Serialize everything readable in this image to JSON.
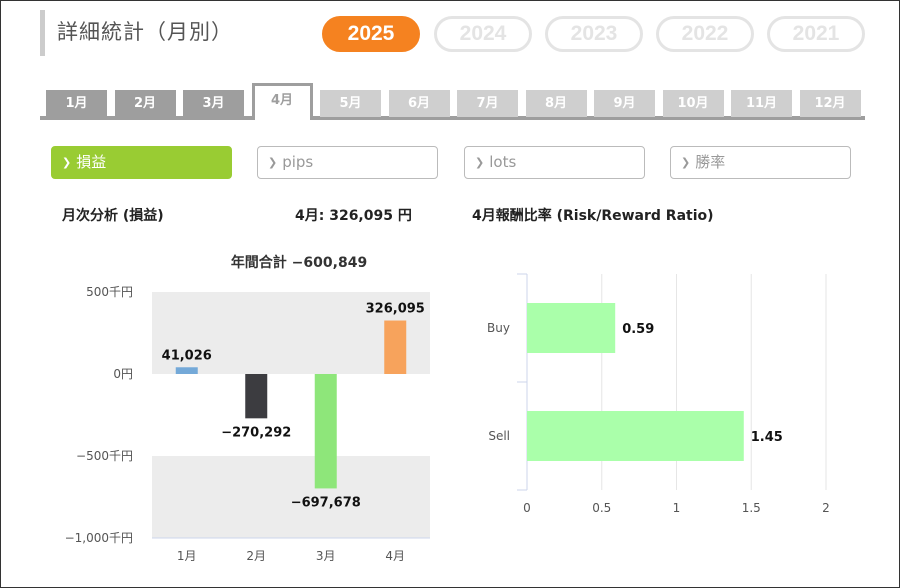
{
  "header": {
    "title": "詳細統計（月別）"
  },
  "years": [
    {
      "label": "2025",
      "active": true
    },
    {
      "label": "2024",
      "active": false
    },
    {
      "label": "2023",
      "active": false
    },
    {
      "label": "2022",
      "active": false
    },
    {
      "label": "2021",
      "active": false
    }
  ],
  "months": [
    "1月",
    "2月",
    "3月",
    "4月",
    "5月",
    "6月",
    "7月",
    "8月",
    "9月",
    "10月",
    "11月",
    "12月"
  ],
  "active_month_index": 3,
  "metrics": [
    {
      "label": "損益",
      "active": true
    },
    {
      "label": "pips",
      "active": false
    },
    {
      "label": "lots",
      "active": false
    },
    {
      "label": "勝率",
      "active": false
    }
  ],
  "summary": {
    "left_title": "月次分析 (損益)",
    "month_value": "4月:  326,095 円",
    "right_title": "4月報酬比率 (Risk/Reward Ratio)"
  },
  "chart_data": [
    {
      "type": "bar",
      "title": "年間合計 −600,849",
      "categories": [
        "1月",
        "2月",
        "3月",
        "4月"
      ],
      "values": [
        41026,
        -270292,
        -697678,
        326095
      ],
      "value_labels": [
        "41,026",
        "−270,292",
        "−697,678",
        "326,095"
      ],
      "bar_colors": [
        "#74a9d8",
        "#3c3c40",
        "#8ee67a",
        "#f7a35c"
      ],
      "yticks": [
        500000,
        0,
        -500000,
        -1000000
      ],
      "ytick_labels": [
        "500千円",
        "0円",
        "−500千円",
        "−1,000千円"
      ],
      "ylim": [
        -1000000,
        500000
      ],
      "plot_bands": [
        [
          0,
          500000
        ],
        [
          -1000000,
          -500000
        ]
      ]
    },
    {
      "type": "bar",
      "orientation": "horizontal",
      "categories": [
        "Buy",
        "Sell"
      ],
      "values": [
        0.59,
        1.45
      ],
      "value_labels": [
        "0.59",
        "1.45"
      ],
      "bar_color": "#aaffaa",
      "xticks": [
        0,
        0.5,
        1,
        1.5,
        2
      ],
      "xtick_labels": [
        "0",
        "0.5",
        "1",
        "1.5",
        "2"
      ],
      "xlim": [
        0,
        2
      ],
      "grid": true
    }
  ]
}
